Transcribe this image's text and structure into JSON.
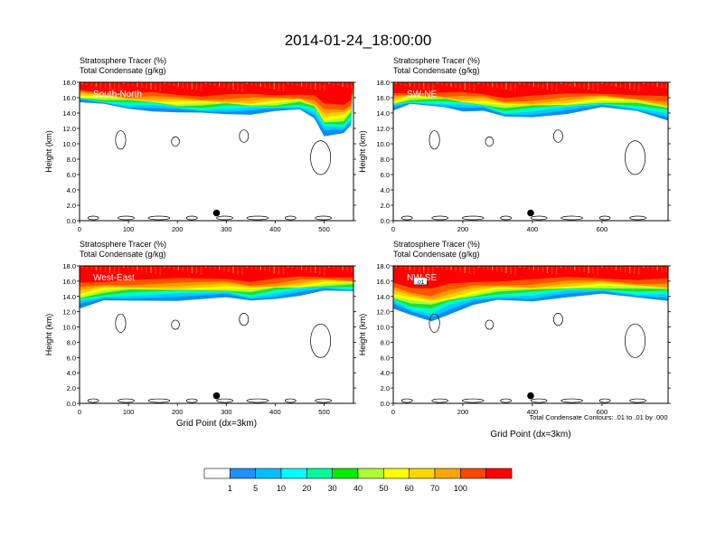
{
  "title": "2014-01-24_18:00:00",
  "panel_header": {
    "line1": "Stratosphere Tracer   (%)",
    "line2": "Total Condensate   (g/kg)"
  },
  "y_axis_label": "Height (km)",
  "x_axis_label": "Grid Point (dx=3km)",
  "contour_note": "Total Condensate Contours: .01 to .01 by .000",
  "y_ticks": [
    "0.0",
    "2.0",
    "4.0",
    "6.0",
    "8.0",
    "10.0",
    "12.0",
    "14.0",
    "16.0",
    "18.0"
  ],
  "colorbar": {
    "labels": [
      "1",
      "5",
      "10",
      "20",
      "30",
      "40",
      "50",
      "60",
      "70",
      "100"
    ],
    "colors": [
      "#ffffff",
      "#1e90ff",
      "#00bfff",
      "#00ffff",
      "#00fa9a",
      "#00ee00",
      "#adff2f",
      "#ffff00",
      "#ffd700",
      "#ffa500",
      "#ff4500",
      "#ff0000"
    ]
  },
  "chart_data": [
    {
      "type": "heatmap",
      "panel_label": "South-North",
      "x_ticks": [
        "0",
        "100",
        "200",
        "300",
        "400",
        "500"
      ],
      "xlim": [
        0,
        560
      ],
      "ylim": [
        0,
        18
      ],
      "marker": {
        "x": 280,
        "y": 1.0
      },
      "tracer_base_km": [
        [
          0,
          15.4
        ],
        [
          50,
          15.0
        ],
        [
          100,
          14.6
        ],
        [
          150,
          14.4
        ],
        [
          200,
          14.0
        ],
        [
          250,
          13.9
        ],
        [
          300,
          14.0
        ],
        [
          350,
          13.9
        ],
        [
          400,
          14.1
        ],
        [
          450,
          14.4
        ],
        [
          480,
          13.5
        ],
        [
          500,
          11.0
        ],
        [
          540,
          11.2
        ],
        [
          555,
          12.5
        ]
      ],
      "contour_label": ""
    },
    {
      "type": "heatmap",
      "panel_label": "SW-NE",
      "x_ticks": [
        "0",
        "200",
        "400",
        "600"
      ],
      "xlim": [
        0,
        790
      ],
      "ylim": [
        0,
        18
      ],
      "marker": {
        "x": 395,
        "y": 1.0
      },
      "tracer_base_km": [
        [
          0,
          14.3
        ],
        [
          50,
          15.0
        ],
        [
          150,
          14.8
        ],
        [
          200,
          14.4
        ],
        [
          260,
          14.2
        ],
        [
          320,
          13.4
        ],
        [
          400,
          13.6
        ],
        [
          500,
          14.0
        ],
        [
          600,
          14.6
        ],
        [
          700,
          14.2
        ],
        [
          790,
          13.2
        ]
      ],
      "contour_label": ""
    },
    {
      "type": "heatmap",
      "panel_label": "West-East",
      "x_ticks": [
        "0",
        "100",
        "200",
        "300",
        "400",
        "500"
      ],
      "xlim": [
        0,
        560
      ],
      "ylim": [
        0,
        18
      ],
      "marker": {
        "x": 280,
        "y": 1.0
      },
      "tracer_base_km": [
        [
          0,
          12.4
        ],
        [
          50,
          13.3
        ],
        [
          100,
          13.5
        ],
        [
          200,
          13.6
        ],
        [
          300,
          13.8
        ],
        [
          350,
          13.3
        ],
        [
          400,
          13.8
        ],
        [
          450,
          14.2
        ],
        [
          500,
          14.6
        ],
        [
          560,
          14.6
        ]
      ],
      "contour_label": ""
    },
    {
      "type": "heatmap",
      "panel_label": "NW-SE",
      "x_ticks": [
        "0",
        "200",
        "400",
        "600"
      ],
      "xlim": [
        0,
        790
      ],
      "ylim": [
        0,
        18
      ],
      "marker": {
        "x": 395,
        "y": 1.0
      },
      "tracer_base_km": [
        [
          0,
          12.4
        ],
        [
          50,
          11.4
        ],
        [
          110,
          10.8
        ],
        [
          160,
          11.8
        ],
        [
          230,
          12.8
        ],
        [
          300,
          13.4
        ],
        [
          400,
          13.5
        ],
        [
          500,
          14.0
        ],
        [
          600,
          14.2
        ],
        [
          700,
          13.8
        ],
        [
          790,
          13.6
        ]
      ],
      "contour_label": ".01"
    }
  ]
}
